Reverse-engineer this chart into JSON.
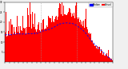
{
  "background_color": "#f0f0f0",
  "plot_bg_color": "#ffffff",
  "bar_color": "#ff0000",
  "median_color": "#0000ff",
  "n_points": 1440,
  "ylim": [
    0,
    30
  ],
  "yticks": [
    5,
    10,
    15,
    20,
    25,
    30
  ],
  "vline_color": "#999999",
  "vline_positions": [
    480,
    960
  ],
  "legend_median": "Median",
  "legend_actual": "Actual",
  "seed": 1234
}
